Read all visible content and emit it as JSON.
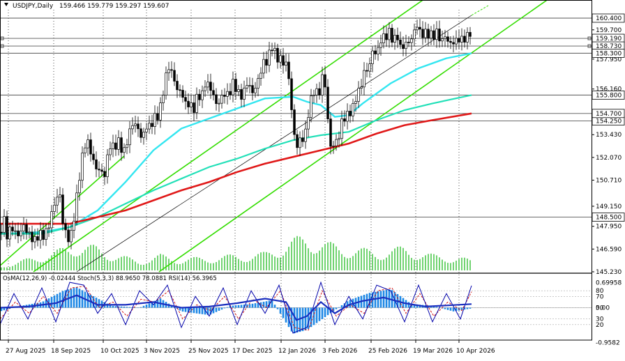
{
  "header": {
    "symbol_tf": "USDJPY,Daily",
    "ohlc": "159.466 159.779 159.297 159.607"
  },
  "indicator_label": "OsMA(12,26,9) -0.02444  Stoch(5,3,3) 88.9650 78.0881  RSI(14) 56.3965",
  "colors": {
    "background": "#ffffff",
    "candle": "#000000",
    "ema_fast": "#33e6f0",
    "ema_mid": "#22e0b8",
    "ema_slow": "#e01818",
    "channel": "#33dd00",
    "trendline": "#000000",
    "hline": "#555555",
    "volume": "#22bb22",
    "osma": "#1e88e5",
    "stoch_main": "#0000aa",
    "stoch_signal": "#d00000",
    "rsi": "#1b2fbf"
  },
  "x_labels": [
    "27 Aug 2025",
    "18 Sep 2025",
    "10 Oct 2025",
    "3 Nov 2025",
    "25 Nov 2025",
    "17 Dec 2025",
    "12 Jan 2026",
    "3 Feb 2026",
    "25 Feb 2026",
    "19 Mar 2026",
    "10 Apr 2026"
  ],
  "price_axis": [
    "159.700",
    "157.950",
    "156.160",
    "154.700",
    "153.430",
    "152.070",
    "150.710",
    "149.150",
    "147.950",
    "146.590",
    "145.230"
  ],
  "highlighted_levels": [
    "160.400",
    "159.190",
    "158.730",
    "158.300",
    "155.800",
    "154.250",
    "148.500"
  ],
  "indicator_axis": [
    "0.69958",
    "80",
    "70",
    "0.00",
    "50",
    "30",
    "20",
    "-0.9582"
  ],
  "chart_data": {
    "type": "candlestick",
    "title": "USDJPY,Daily",
    "price_range": [
      145.23,
      160.9
    ],
    "indicator_range": [
      -0.9582,
      0.69958
    ],
    "horizontal_levels": [
      160.4,
      159.19,
      158.73,
      158.3,
      155.8,
      154.7,
      154.25,
      148.5
    ],
    "moving_average_end_values": {
      "ema_fast": 158.3,
      "ema_mid": 155.8,
      "ema_slow": 154.7
    },
    "last_ohlc": [
      159.466,
      159.779,
      159.297,
      159.607
    ],
    "close_path": [
      [
        0,
        147.6
      ],
      [
        6,
        148.3
      ],
      [
        10,
        147.4
      ],
      [
        16,
        147.9
      ],
      [
        22,
        147.6
      ],
      [
        28,
        147.3
      ],
      [
        32,
        148.1
      ],
      [
        38,
        147.7
      ],
      [
        44,
        147.3
      ],
      [
        50,
        147.1
      ],
      [
        56,
        147.5
      ],
      [
        62,
        147.4
      ],
      [
        68,
        147.7
      ],
      [
        74,
        148.7
      ],
      [
        80,
        149.6
      ],
      [
        86,
        149.8
      ],
      [
        90,
        148.2
      ],
      [
        96,
        147.3
      ],
      [
        100,
        147.1
      ],
      [
        104,
        147.9
      ],
      [
        108,
        149.1
      ],
      [
        112,
        150.3
      ],
      [
        116,
        151.6
      ],
      [
        120,
        152.6
      ],
      [
        124,
        153.1
      ],
      [
        128,
        152.8
      ],
      [
        132,
        152.0
      ],
      [
        136,
        151.7
      ],
      [
        140,
        151.1
      ],
      [
        144,
        151.6
      ],
      [
        148,
        150.7
      ],
      [
        152,
        151.4
      ],
      [
        156,
        152.7
      ],
      [
        160,
        152.9
      ],
      [
        164,
        152.5
      ],
      [
        168,
        153.1
      ],
      [
        172,
        152.9
      ],
      [
        176,
        152.3
      ],
      [
        180,
        152.6
      ],
      [
        184,
        153.4
      ],
      [
        188,
        153.9
      ],
      [
        192,
        154.2
      ],
      [
        196,
        153.9
      ],
      [
        200,
        153.6
      ],
      [
        204,
        153.1
      ],
      [
        208,
        153.8
      ],
      [
        212,
        154.1
      ],
      [
        216,
        153.7
      ],
      [
        220,
        154.6
      ],
      [
        224,
        154.3
      ],
      [
        228,
        154.8
      ],
      [
        232,
        155.4
      ],
      [
        236,
        156.6
      ],
      [
        240,
        157.3
      ],
      [
        244,
        157.6
      ],
      [
        248,
        156.8
      ],
      [
        252,
        156.5
      ],
      [
        256,
        155.8
      ],
      [
        260,
        156.2
      ],
      [
        264,
        155.4
      ],
      [
        268,
        155.1
      ],
      [
        272,
        155.5
      ],
      [
        276,
        154.7
      ],
      [
        280,
        155.3
      ],
      [
        284,
        155.9
      ],
      [
        288,
        155.6
      ],
      [
        292,
        156.1
      ],
      [
        296,
        156.8
      ],
      [
        300,
        156.1
      ],
      [
        304,
        156.2
      ],
      [
        308,
        155.4
      ],
      [
        312,
        155.1
      ],
      [
        316,
        155.7
      ],
      [
        320,
        155.6
      ],
      [
        324,
        156.2
      ],
      [
        328,
        155.4
      ],
      [
        332,
        156.7
      ],
      [
        336,
        156.3
      ],
      [
        340,
        156.2
      ],
      [
        344,
        155.6
      ],
      [
        348,
        155.9
      ],
      [
        352,
        156.2
      ],
      [
        356,
        156.8
      ],
      [
        360,
        155.8
      ],
      [
        364,
        156.1
      ],
      [
        368,
        156.4
      ],
      [
        372,
        157.0
      ],
      [
        376,
        157.5
      ],
      [
        380,
        158.0
      ],
      [
        384,
        157.6
      ],
      [
        388,
        158.9
      ],
      [
        392,
        158.5
      ],
      [
        396,
        158.2
      ],
      [
        400,
        157.8
      ],
      [
        404,
        158.1
      ],
      [
        408,
        157.4
      ],
      [
        412,
        157.9
      ],
      [
        416,
        155.8
      ],
      [
        420,
        154.0
      ],
      [
        424,
        152.8
      ],
      [
        428,
        152.7
      ],
      [
        432,
        153.5
      ],
      [
        436,
        152.9
      ],
      [
        440,
        154.2
      ],
      [
        444,
        155.2
      ],
      [
        448,
        155.8
      ],
      [
        452,
        156.3
      ],
      [
        456,
        155.6
      ],
      [
        460,
        156.4
      ],
      [
        464,
        157.3
      ],
      [
        468,
        155.5
      ],
      [
        472,
        153.1
      ],
      [
        476,
        152.4
      ],
      [
        480,
        153.2
      ],
      [
        484,
        152.9
      ],
      [
        488,
        153.8
      ],
      [
        492,
        154.6
      ],
      [
        496,
        154.3
      ],
      [
        500,
        154.9
      ],
      [
        504,
        154.7
      ],
      [
        508,
        155.4
      ],
      [
        512,
        155.9
      ],
      [
        516,
        156.1
      ],
      [
        520,
        156.8
      ],
      [
        524,
        157.5
      ],
      [
        528,
        157.1
      ],
      [
        532,
        158.2
      ],
      [
        536,
        158.6
      ],
      [
        540,
        158.1
      ],
      [
        544,
        158.9
      ],
      [
        548,
        159.3
      ],
      [
        552,
        159.2
      ],
      [
        556,
        159.5
      ],
      [
        560,
        159.6
      ],
      [
        564,
        158.8
      ],
      [
        568,
        159.5
      ],
      [
        572,
        159.1
      ],
      [
        576,
        158.2
      ],
      [
        580,
        159.2
      ],
      [
        584,
        158.6
      ],
      [
        588,
        159.3
      ],
      [
        592,
        159.1
      ],
      [
        596,
        160.1
      ],
      [
        600,
        159.9
      ],
      [
        604,
        159.2
      ],
      [
        608,
        159.7
      ],
      [
        612,
        159.3
      ],
      [
        616,
        159.6
      ],
      [
        620,
        159.2
      ],
      [
        624,
        159.5
      ],
      [
        628,
        159.6
      ],
      [
        632,
        158.8
      ],
      [
        636,
        159.3
      ],
      [
        640,
        159.4
      ],
      [
        644,
        158.6
      ],
      [
        648,
        159.2
      ],
      [
        652,
        158.7
      ],
      [
        656,
        159.4
      ],
      [
        660,
        158.9
      ],
      [
        664,
        159.3
      ],
      [
        668,
        159.1
      ],
      [
        672,
        159.5
      ],
      [
        676,
        159.6
      ]
    ],
    "series": [
      {
        "name": "EMA fast",
        "path": [
          [
            0,
            147.5
          ],
          [
            60,
            147.6
          ],
          [
            100,
            147.9
          ],
          [
            140,
            148.9
          ],
          [
            180,
            150.6
          ],
          [
            220,
            152.5
          ],
          [
            260,
            153.8
          ],
          [
            300,
            154.4
          ],
          [
            340,
            155.0
          ],
          [
            380,
            155.6
          ],
          [
            420,
            155.7
          ],
          [
            440,
            155.4
          ],
          [
            460,
            155.2
          ],
          [
            480,
            154.5
          ],
          [
            500,
            154.6
          ],
          [
            520,
            155.3
          ],
          [
            560,
            156.5
          ],
          [
            600,
            157.4
          ],
          [
            640,
            158.0
          ],
          [
            676,
            158.3
          ]
        ]
      },
      {
        "name": "EMA mid",
        "path": [
          [
            0,
            147.5
          ],
          [
            60,
            147.5
          ],
          [
            100,
            147.9
          ],
          [
            140,
            148.5
          ],
          [
            180,
            149.3
          ],
          [
            220,
            150.1
          ],
          [
            260,
            150.8
          ],
          [
            300,
            151.5
          ],
          [
            340,
            152.0
          ],
          [
            380,
            152.6
          ],
          [
            420,
            153.1
          ],
          [
            460,
            153.4
          ],
          [
            500,
            153.6
          ],
          [
            540,
            154.3
          ],
          [
            580,
            154.9
          ],
          [
            620,
            155.3
          ],
          [
            676,
            155.8
          ]
        ]
      },
      {
        "name": "EMA slow",
        "path": [
          [
            0,
            148.1
          ],
          [
            60,
            148.1
          ],
          [
            100,
            148.1
          ],
          [
            140,
            148.5
          ],
          [
            180,
            148.9
          ],
          [
            220,
            149.5
          ],
          [
            260,
            150.1
          ],
          [
            300,
            150.6
          ],
          [
            340,
            151.2
          ],
          [
            380,
            151.7
          ],
          [
            420,
            152.1
          ],
          [
            460,
            152.5
          ],
          [
            500,
            152.9
          ],
          [
            540,
            153.5
          ],
          [
            580,
            154.0
          ],
          [
            620,
            154.3
          ],
          [
            676,
            154.7
          ]
        ]
      }
    ],
    "volume_path": [
      [
        0,
        2
      ],
      [
        40,
        6
      ],
      [
        80,
        10
      ],
      [
        110,
        14
      ],
      [
        140,
        12
      ],
      [
        160,
        9
      ],
      [
        200,
        5
      ],
      [
        230,
        8
      ],
      [
        260,
        6
      ],
      [
        300,
        7
      ],
      [
        340,
        8
      ],
      [
        380,
        9
      ],
      [
        420,
        16
      ],
      [
        440,
        18
      ],
      [
        470,
        14
      ],
      [
        500,
        12
      ],
      [
        540,
        10
      ],
      [
        580,
        12
      ],
      [
        620,
        8
      ],
      [
        660,
        7
      ],
      [
        676,
        5
      ]
    ],
    "osma_path": [
      [
        0,
        -0.1
      ],
      [
        30,
        0.05
      ],
      [
        60,
        0.15
      ],
      [
        90,
        0.45
      ],
      [
        110,
        0.55
      ],
      [
        130,
        0.35
      ],
      [
        160,
        0.05
      ],
      [
        200,
        0.0
      ],
      [
        230,
        0.25
      ],
      [
        260,
        -0.1
      ],
      [
        300,
        -0.2
      ],
      [
        330,
        0.05
      ],
      [
        360,
        0.1
      ],
      [
        390,
        0.2
      ],
      [
        420,
        -0.7
      ],
      [
        440,
        -0.6
      ],
      [
        470,
        -0.2
      ],
      [
        500,
        0.2
      ],
      [
        530,
        0.4
      ],
      [
        560,
        0.5
      ],
      [
        590,
        0.1
      ],
      [
        620,
        0.05
      ],
      [
        650,
        -0.1
      ],
      [
        676,
        -0.02
      ]
    ],
    "stoch_main_path": [
      [
        0,
        20
      ],
      [
        20,
        75
      ],
      [
        40,
        30
      ],
      [
        60,
        85
      ],
      [
        80,
        25
      ],
      [
        100,
        95
      ],
      [
        120,
        90
      ],
      [
        140,
        40
      ],
      [
        160,
        75
      ],
      [
        180,
        20
      ],
      [
        200,
        80
      ],
      [
        220,
        55
      ],
      [
        240,
        90
      ],
      [
        260,
        15
      ],
      [
        280,
        70
      ],
      [
        300,
        35
      ],
      [
        320,
        85
      ],
      [
        340,
        20
      ],
      [
        360,
        80
      ],
      [
        380,
        40
      ],
      [
        400,
        90
      ],
      [
        420,
        5
      ],
      [
        440,
        15
      ],
      [
        460,
        95
      ],
      [
        480,
        20
      ],
      [
        500,
        70
      ],
      [
        520,
        30
      ],
      [
        540,
        90
      ],
      [
        560,
        80
      ],
      [
        580,
        25
      ],
      [
        600,
        90
      ],
      [
        620,
        25
      ],
      [
        640,
        75
      ],
      [
        660,
        30
      ],
      [
        676,
        88.965
      ]
    ],
    "stoch_signal_path": [
      [
        0,
        30
      ],
      [
        22,
        60
      ],
      [
        42,
        40
      ],
      [
        62,
        70
      ],
      [
        82,
        40
      ],
      [
        102,
        85
      ],
      [
        122,
        88
      ],
      [
        142,
        50
      ],
      [
        162,
        60
      ],
      [
        182,
        35
      ],
      [
        202,
        65
      ],
      [
        222,
        60
      ],
      [
        242,
        80
      ],
      [
        262,
        30
      ],
      [
        282,
        55
      ],
      [
        302,
        45
      ],
      [
        322,
        70
      ],
      [
        342,
        30
      ],
      [
        362,
        65
      ],
      [
        382,
        50
      ],
      [
        402,
        80
      ],
      [
        422,
        15
      ],
      [
        442,
        10
      ],
      [
        462,
        80
      ],
      [
        482,
        35
      ],
      [
        502,
        55
      ],
      [
        522,
        40
      ],
      [
        542,
        80
      ],
      [
        562,
        85
      ],
      [
        582,
        40
      ],
      [
        602,
        75
      ],
      [
        622,
        35
      ],
      [
        642,
        60
      ],
      [
        662,
        45
      ],
      [
        676,
        78.088
      ]
    ],
    "rsi_path": [
      [
        0,
        50
      ],
      [
        40,
        52
      ],
      [
        80,
        58
      ],
      [
        110,
        72
      ],
      [
        140,
        55
      ],
      [
        180,
        55
      ],
      [
        220,
        60
      ],
      [
        260,
        50
      ],
      [
        300,
        52
      ],
      [
        340,
        58
      ],
      [
        380,
        66
      ],
      [
        410,
        60
      ],
      [
        425,
        28
      ],
      [
        440,
        35
      ],
      [
        460,
        60
      ],
      [
        480,
        40
      ],
      [
        500,
        55
      ],
      [
        520,
        62
      ],
      [
        550,
        68
      ],
      [
        580,
        58
      ],
      [
        610,
        52
      ],
      [
        640,
        54
      ],
      [
        676,
        56.3965
      ]
    ]
  }
}
